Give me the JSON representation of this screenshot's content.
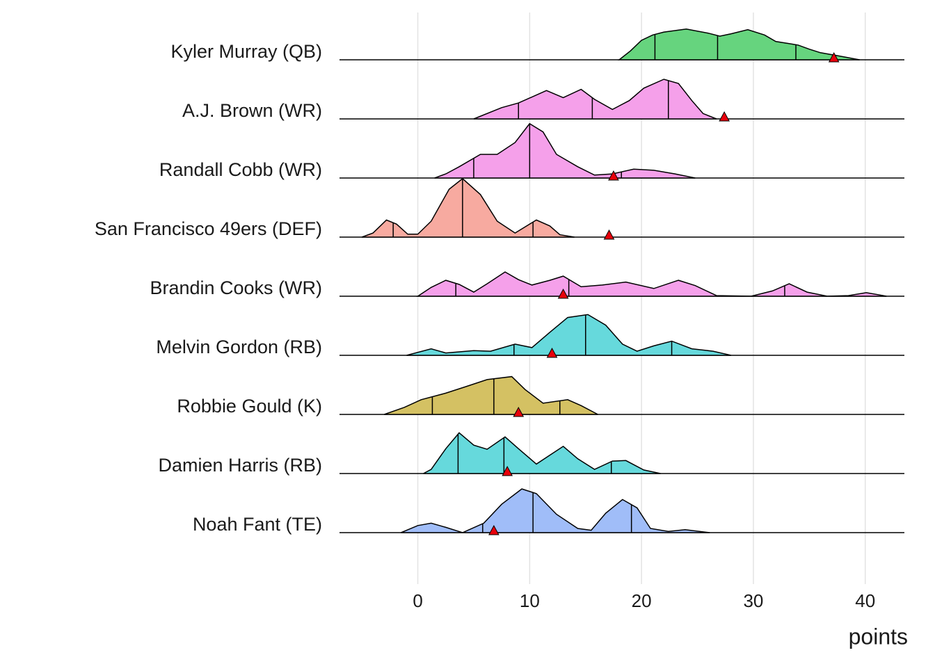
{
  "chart_data": {
    "type": "ridgeline",
    "x_label": "points",
    "xlim": [
      -7,
      43.5
    ],
    "xticks": [
      0,
      10,
      20,
      30,
      40
    ],
    "grid": true,
    "series": [
      {
        "name": "Kyler Murray (QB)",
        "color": "#66d47e",
        "x": [
          18,
          19,
          20,
          21,
          22,
          24,
          26,
          27,
          28,
          29.5,
          31,
          32,
          34,
          35,
          36,
          37.5,
          39.5
        ],
        "density": [
          0,
          0.15,
          0.33,
          0.42,
          0.47,
          0.52,
          0.45,
          0.4,
          0.44,
          0.51,
          0.42,
          0.31,
          0.25,
          0.18,
          0.12,
          0.07,
          0
        ],
        "quantiles": [
          21.2,
          26.8,
          33.8
        ],
        "actual": 37.2
      },
      {
        "name": "A.J. Brown (WR)",
        "color": "#f5a0ea",
        "x": [
          5,
          7.5,
          9,
          11.5,
          13,
          14.6,
          15.8,
          17.4,
          18.9,
          20.2,
          22,
          23.3,
          24.5,
          25.5,
          26.7
        ],
        "density": [
          0,
          0.19,
          0.27,
          0.48,
          0.36,
          0.5,
          0.33,
          0.16,
          0.31,
          0.52,
          0.67,
          0.6,
          0.31,
          0.09,
          0
        ],
        "quantiles": [
          9,
          15.6,
          22.4
        ],
        "actual": 27.4
      },
      {
        "name": "Randall Cobb (WR)",
        "color": "#f5a0ea",
        "x": [
          1.5,
          2.5,
          3.7,
          5.6,
          7.1,
          8.7,
          10,
          11.2,
          12.4,
          14.3,
          15.8,
          17.4,
          19.3,
          21.1,
          23,
          24.8
        ],
        "density": [
          0,
          0.07,
          0.19,
          0.4,
          0.4,
          0.6,
          0.92,
          0.78,
          0.4,
          0.19,
          0.05,
          0.07,
          0.15,
          0.13,
          0.07,
          0
        ],
        "quantiles": [
          5,
          10,
          18.2
        ],
        "actual": 17.5
      },
      {
        "name": "San Francisco 49ers (DEF)",
        "color": "#f7aaa0",
        "x": [
          -5,
          -4,
          -2.8,
          -1.9,
          -0.9,
          0,
          1.2,
          2.8,
          4,
          5.6,
          7.1,
          8.7,
          10.6,
          11.8,
          12.7,
          14
        ],
        "density": [
          0,
          0.07,
          0.29,
          0.22,
          0.05,
          0.05,
          0.27,
          0.81,
          0.99,
          0.72,
          0.27,
          0.07,
          0.29,
          0.19,
          0.04,
          0
        ],
        "quantiles": [
          -2.2,
          4,
          10.3
        ],
        "actual": 17.1
      },
      {
        "name": "Brandin Cooks (WR)",
        "color": "#f5a0ea",
        "x": [
          0,
          1.2,
          2.5,
          3.7,
          5,
          6.2,
          7.8,
          9,
          10.2,
          11.8,
          13,
          14.6,
          16.5,
          18.6,
          21.1,
          23.3,
          24.8,
          26.7,
          29.8,
          31.7,
          33.2,
          34.8,
          36.6,
          38.5,
          40.1,
          41.9
        ],
        "density": [
          0,
          0.15,
          0.27,
          0.2,
          0.07,
          0.21,
          0.41,
          0.28,
          0.19,
          0.27,
          0.34,
          0.16,
          0.19,
          0.24,
          0.13,
          0.27,
          0.18,
          0.01,
          0,
          0.09,
          0.21,
          0.07,
          0,
          0.01,
          0.06,
          0
        ],
        "quantiles": [
          3.4,
          13.5,
          32.8
        ],
        "actual": 13
      },
      {
        "name": "Melvin Gordon (RB)",
        "color": "#66d9dc",
        "x": [
          -1,
          1.2,
          2.5,
          5,
          6.5,
          8.7,
          10.2,
          11.8,
          13.4,
          15.2,
          16.8,
          18.3,
          19.6,
          21.1,
          22.7,
          24.5,
          26.4,
          28
        ],
        "density": [
          0,
          0.11,
          0.04,
          0.08,
          0.07,
          0.19,
          0.13,
          0.39,
          0.64,
          0.69,
          0.51,
          0.19,
          0.07,
          0.16,
          0.24,
          0.11,
          0.07,
          0
        ],
        "quantiles": [
          8.6,
          15,
          22.7
        ],
        "actual": 12
      },
      {
        "name": "Robbie Gould (K)",
        "color": "#d4c163",
        "x": [
          -3,
          -1.2,
          0.3,
          2.5,
          4.3,
          6.2,
          8.4,
          9.6,
          11.2,
          13.4,
          14.6,
          16.1
        ],
        "density": [
          0,
          0.12,
          0.25,
          0.36,
          0.47,
          0.59,
          0.64,
          0.42,
          0.19,
          0.25,
          0.15,
          0
        ],
        "quantiles": [
          1.3,
          6.8,
          12.7
        ],
        "actual": 9
      },
      {
        "name": "Damien Harris (RB)",
        "color": "#66d9dc",
        "x": [
          0.5,
          1.2,
          2.5,
          3.7,
          5,
          6.2,
          7.8,
          9,
          10.6,
          11.8,
          13,
          14.3,
          15.8,
          17.4,
          18.6,
          20.2,
          21.7
        ],
        "density": [
          0,
          0.07,
          0.42,
          0.69,
          0.48,
          0.41,
          0.62,
          0.42,
          0.16,
          0.31,
          0.46,
          0.25,
          0.07,
          0.21,
          0.22,
          0.06,
          0
        ],
        "quantiles": [
          3.6,
          7.7,
          17.3
        ],
        "actual": 8
      },
      {
        "name": "Noah Fant (TE)",
        "color": "#a0bdf8",
        "x": [
          -1.5,
          0,
          1.2,
          2.5,
          4,
          5.9,
          7.5,
          9.3,
          10.6,
          12.4,
          14.3,
          15.5,
          16.8,
          18.3,
          19.6,
          20.8,
          22.4,
          23.9,
          26.1
        ],
        "density": [
          0,
          0.12,
          0.16,
          0.09,
          0,
          0.16,
          0.48,
          0.74,
          0.66,
          0.31,
          0.07,
          0.04,
          0.33,
          0.56,
          0.42,
          0.07,
          0.02,
          0.05,
          0
        ],
        "quantiles": [
          5.8,
          10.3,
          19.1
        ],
        "actual": 6.8
      }
    ]
  }
}
